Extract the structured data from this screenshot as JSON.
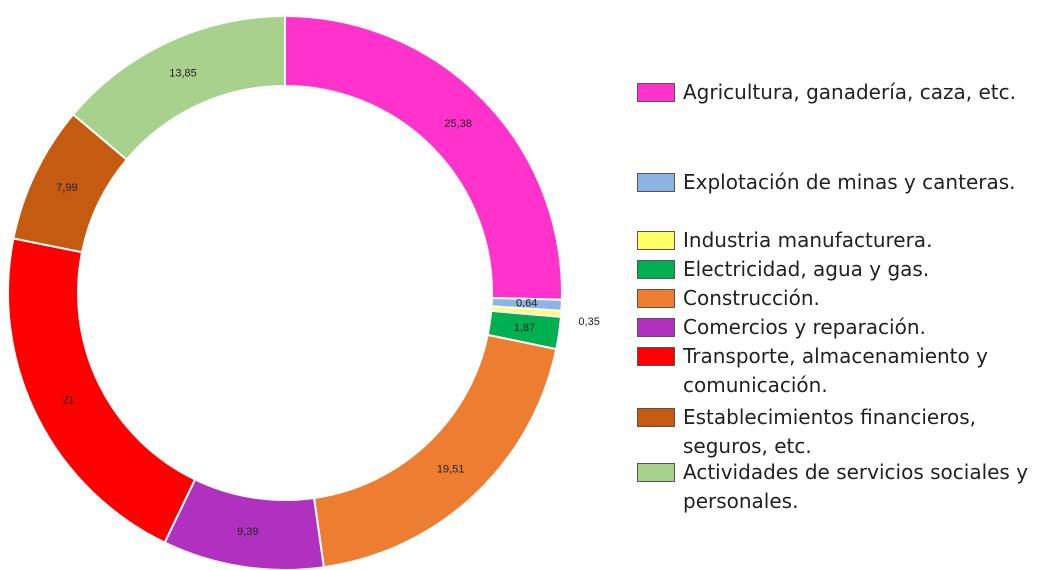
{
  "chart_data": {
    "type": "donut",
    "categories": [
      "Agricultura, ganadería, caza, etc.",
      "Explotación de minas y canteras.",
      "Industria manufacturera.",
      "Electricidad, agua y gas.",
      "Construcción.",
      "Comercios y reparación.",
      "Transporte, almacenamiento y comunicación.",
      "Establecimientos financieros, seguros, etc.",
      "Actividades de servicios sociales y personales."
    ],
    "values": [
      25.38,
      0.64,
      0.35,
      1.87,
      19.51,
      9.39,
      21,
      7.99,
      13.85
    ],
    "value_labels": [
      "25,38",
      "0,64",
      "0,35",
      "1,87",
      "19,51",
      "9,39",
      "21",
      "7,99",
      "13,85"
    ],
    "colors": [
      "#ff33cc",
      "#8eb4e3",
      "#ffff66",
      "#00b050",
      "#ed7d31",
      "#b030c0",
      "#ff0000",
      "#c55a11",
      "#a9d18e"
    ]
  }
}
